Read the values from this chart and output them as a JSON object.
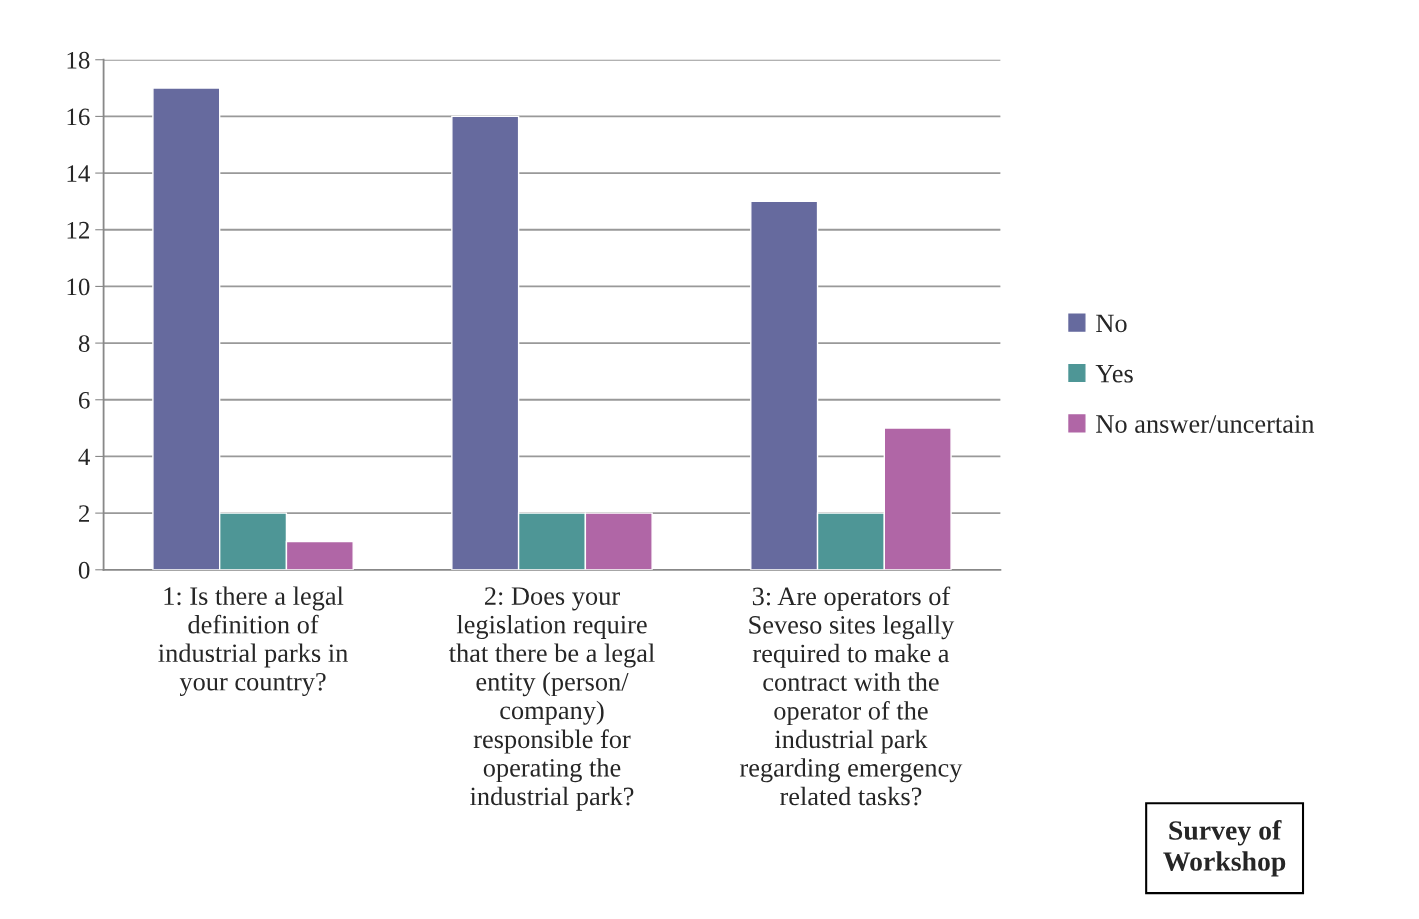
{
  "chart_data": {
    "type": "bar",
    "categories": [
      "1: Is there a legal\ndefinition of\nindustrial parks in\nyour country?",
      "2: Does your\nlegislation require\nthat there be a legal\nentity (person/\ncompany)\nresponsible for\noperating the\nindustrial park?",
      "3: Are operators of\nSeveso sites legally\nrequired to make a\ncontract with the\noperator of the\nindustrial park\nregarding emergency\nrelated tasks?"
    ],
    "series": [
      {
        "name": "No",
        "color": "#666a9e",
        "values": [
          17,
          16,
          13
        ]
      },
      {
        "name": "Yes",
        "color": "#4e9696",
        "values": [
          2,
          2,
          2
        ]
      },
      {
        "name": "No answer/uncertain",
        "color": "#b066a6",
        "values": [
          1,
          2,
          5
        ]
      }
    ],
    "ylim": [
      0,
      18
    ],
    "yticks": [
      0,
      2,
      4,
      6,
      8,
      10,
      12,
      14,
      16,
      18
    ],
    "grid": "y",
    "legend": "right",
    "annotations": [
      "Survey of\nWorkshop"
    ]
  }
}
